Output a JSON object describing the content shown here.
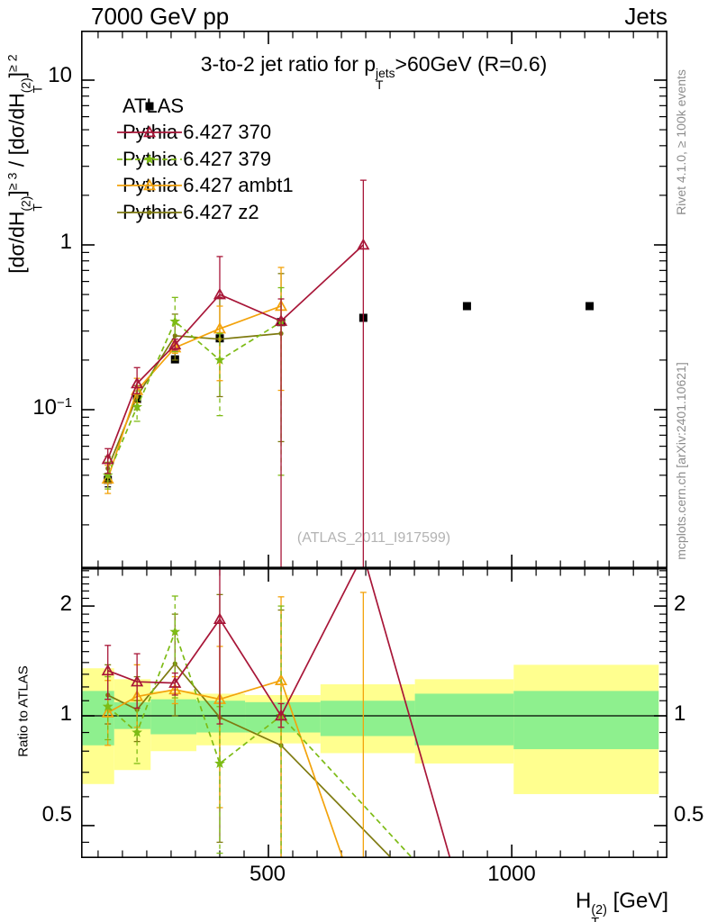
{
  "header": {
    "left": "7000 GeV pp",
    "right": "Jets"
  },
  "title": {
    "pre": "3-to-2 jet ratio for p",
    "sup": "jets",
    "sub": "T",
    "post": ">60GeV (R=0.6)"
  },
  "ytitle": {
    "core": "[dσ/dH",
    "sup": "(2)",
    "sub": "T",
    "close": "]",
    "e3": "≥ 3",
    "sep": " / ",
    "e2": "≥ 2"
  },
  "axis": {
    "y": {
      "t10": "10",
      "t1": "1",
      "t01b": "10",
      "t01e": "−1"
    },
    "x": {
      "t500": "500",
      "t1000": "1000",
      "h": "H",
      "sup": "(2)",
      "sub": "T",
      "rest": " [GeV]"
    },
    "ratio": {
      "label": "Ratio to ATLAS",
      "t2": "2",
      "t1": "1",
      "t05": "0.5"
    }
  },
  "captions": {
    "rivet": "Rivet 4.1.0, ≥ 100k events",
    "mcplots": "mcplots.cern.ch [arXiv:2401.10621]",
    "watermark": "(ATLAS_2011_I917599)"
  },
  "chart_data": {
    "type": "line",
    "title": "3-to-2 jet ratio for pT(jets) >60GeV (R=0.6)",
    "xlabel": "HT(2) [GeV]",
    "ylabel": "[dσ/dHT(2)]≥3 / [dσ/dHT(2)]≥2",
    "ratio_ylabel": "Ratio to ATLAS",
    "x_scale": "linear",
    "y_scale": "log",
    "ratio_scale": "log",
    "x_range": [
      115,
      1320
    ],
    "y_range": [
      0.0109,
      20
    ],
    "ratio_range": [
      0.407,
      2.54
    ],
    "x_major_ticks": [
      500,
      1000
    ],
    "x_minor_step": 50,
    "legend_position": "top-left",
    "series": [
      {
        "name": "ATLAS",
        "color": "#000000",
        "marker": "square",
        "line": "none",
        "main": {
          "x": [
            170,
            230,
            308,
            400,
            526,
            695,
            908,
            1160
          ],
          "y": [
            0.0375,
            0.116,
            0.202,
            0.271,
            0.34,
            0.361,
            0.425,
            0.425
          ],
          "err": [
            [
              0.034,
              0.041
            ],
            [
              0.111,
              0.121
            ],
            [
              0.195,
              0.209
            ],
            [
              0.261,
              0.281
            ],
            [
              0.327,
              0.354
            ],
            [
              0.346,
              0.377
            ],
            [
              0.408,
              0.443
            ],
            [
              0.408,
              0.443
            ]
          ]
        },
        "ratio": null
      },
      {
        "name": "Pythia 6.427 370",
        "color": "#a81638",
        "marker": "triangle",
        "line": "solid",
        "main": {
          "x": [
            170,
            230,
            308,
            400,
            526,
            695
          ],
          "y": [
            0.05,
            0.144,
            0.248,
            0.5,
            0.345,
            1.0
          ],
          "err": [
            [
              0.041,
              0.058
            ],
            [
              0.125,
              0.18
            ],
            [
              0.23,
              0.268
            ],
            [
              0.48,
              0.85
            ],
            [
              0.001,
              0.47
            ],
            [
              0.001,
              2.47
            ]
          ]
        },
        "ratio": {
          "x": [
            170,
            230,
            308,
            400,
            526,
            695,
            908
          ],
          "y": [
            1.33,
            1.24,
            1.23,
            1.84,
            1.0,
            2.77,
            0.28
          ],
          "err": [
            [
              1.11,
              1.56
            ],
            [
              1.05,
              1.48
            ],
            [
              1.14,
              1.31
            ],
            [
              0.95,
              3.1
            ],
            [
              0.93,
              1.08
            ],
            null,
            null
          ]
        }
      },
      {
        "name": "Pythia 6.427 379",
        "color": "#7dbb15",
        "marker": "star",
        "line": "dashed",
        "main": {
          "x": [
            170,
            230,
            308,
            400,
            526
          ],
          "y": [
            0.04,
            0.104,
            0.343,
            0.2,
            0.34
          ],
          "err": [
            [
              0.033,
              0.048
            ],
            [
              0.085,
              0.13
            ],
            [
              0.225,
              0.48
            ],
            [
              0.092,
              0.29
            ],
            [
              0.04,
              0.55
            ]
          ]
        },
        "ratio": {
          "x": [
            170,
            230,
            308,
            400,
            526,
            908
          ],
          "y": [
            1.06,
            0.9,
            1.7,
            0.74,
            1.0,
            0.28
          ],
          "err": [
            [
              0.86,
              1.28
            ],
            [
              0.74,
              1.1
            ],
            [
              1.12,
              2.13
            ],
            [
              0.42,
              1.06
            ],
            [
              0.1,
              2.0
            ],
            null
          ]
        }
      },
      {
        "name": "Pythia 6.427 ambt1",
        "color": "#f3a30c",
        "marker": "triangle",
        "line": "solid",
        "main": {
          "x": [
            170,
            230,
            308,
            400,
            526
          ],
          "y": [
            0.038,
            0.131,
            0.238,
            0.31,
            0.425
          ],
          "err": [
            [
              0.031,
              0.046
            ],
            [
              0.11,
              0.155
            ],
            [
              0.22,
              0.26
            ],
            [
              0.15,
              0.425
            ],
            [
              0.131,
              0.73
            ]
          ]
        },
        "ratio": {
          "x": [
            170,
            230,
            308,
            400,
            526,
            695
          ],
          "y": [
            1.02,
            1.13,
            1.18,
            1.11,
            1.25,
            0.28
          ],
          "err": [
            [
              0.83,
              1.25
            ],
            [
              0.93,
              1.38
            ],
            [
              1.08,
              1.28
            ],
            [
              0.56,
              1.55
            ],
            [
              0.38,
              2.12
            ],
            [
              0.02,
              2.18
            ]
          ]
        }
      },
      {
        "name": "Pythia 6.427 z2",
        "color": "#7e7a10",
        "marker": "dot",
        "line": "solid",
        "main": {
          "x": [
            170,
            230,
            308,
            400,
            526
          ],
          "y": [
            0.044,
            0.12,
            0.281,
            0.268,
            0.29
          ],
          "err": [
            [
              0.037,
              0.052
            ],
            [
              0.1,
              0.14
            ],
            [
              0.2,
              0.38
            ],
            [
              0.12,
              0.48
            ],
            [
              0.064,
              0.67
            ]
          ]
        },
        "ratio": {
          "x": [
            170,
            230,
            308,
            400,
            526,
            908
          ],
          "y": [
            1.14,
            1.04,
            1.39,
            0.99,
            0.83,
            0.25
          ],
          "err": [
            [
              0.95,
              1.38
            ],
            [
              0.85,
              1.28
            ],
            [
              1.0,
              1.9
            ],
            [
              0.45,
              2.15
            ],
            [
              0.1,
              1.95
            ],
            null
          ]
        }
      }
    ],
    "bands": {
      "edges": [
        115,
        183,
        258,
        352,
        452,
        607,
        801,
        1004,
        1302
      ],
      "yellow": [
        [
          0.65,
          1.35
        ],
        [
          0.71,
          1.26
        ],
        [
          0.8,
          1.17
        ],
        [
          0.83,
          1.15
        ],
        [
          0.84,
          1.14
        ],
        [
          0.79,
          1.22
        ],
        [
          0.74,
          1.26
        ],
        [
          0.61,
          1.38
        ]
      ],
      "green": [
        [
          0.83,
          1.17
        ],
        [
          0.92,
          1.09
        ],
        [
          0.89,
          1.11
        ],
        [
          0.9,
          1.1
        ],
        [
          0.9,
          1.09
        ],
        [
          0.88,
          1.1
        ],
        [
          0.83,
          1.15
        ],
        [
          0.81,
          1.17
        ]
      ]
    },
    "colors": {
      "band_yellow": "#ffff8f",
      "band_green": "#8ef08e"
    }
  }
}
